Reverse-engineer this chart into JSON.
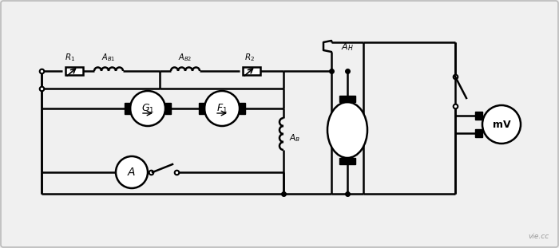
{
  "bg_color": "#f0f0f0",
  "line_color": "black",
  "lw": 1.8,
  "fig_width": 7.0,
  "fig_height": 3.11,
  "watermark": "vie.cc"
}
